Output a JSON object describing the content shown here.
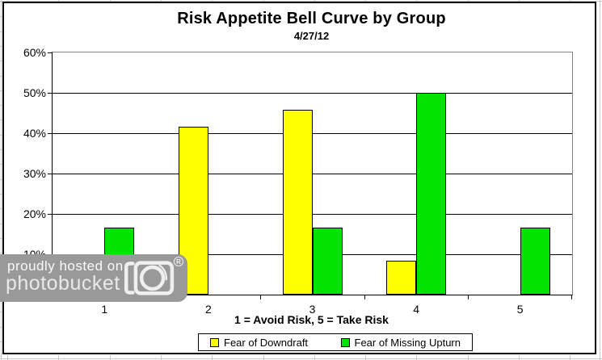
{
  "chart_data": {
    "type": "bar",
    "title": "Risk Appetite Bell Curve by Group",
    "subtitle": "4/27/12",
    "categories": [
      "1",
      "2",
      "3",
      "4",
      "5"
    ],
    "series": [
      {
        "name": "Fear of Downdraft",
        "color": "#FFFF00",
        "values": [
          4.17,
          41.67,
          45.83,
          8.33,
          0
        ]
      },
      {
        "name": "Fear of Missing Upturn",
        "color": "#00E400",
        "values": [
          16.67,
          0,
          16.67,
          50,
          16.67
        ]
      }
    ],
    "xlabel": "1 = Avoid Risk, 5 = Take Risk",
    "ylabel": "",
    "ylim": [
      0,
      60
    ],
    "ytick_step": 10,
    "ytick_labels": [
      "0%",
      "10%",
      "20%",
      "30%",
      "40%",
      "50%",
      "60%"
    ],
    "grid": true,
    "legend_position": "bottom"
  },
  "watermark": {
    "line1": "proudly hosted on",
    "line2": "photobucket",
    "registered": "R",
    "icon": "camera-icon"
  }
}
